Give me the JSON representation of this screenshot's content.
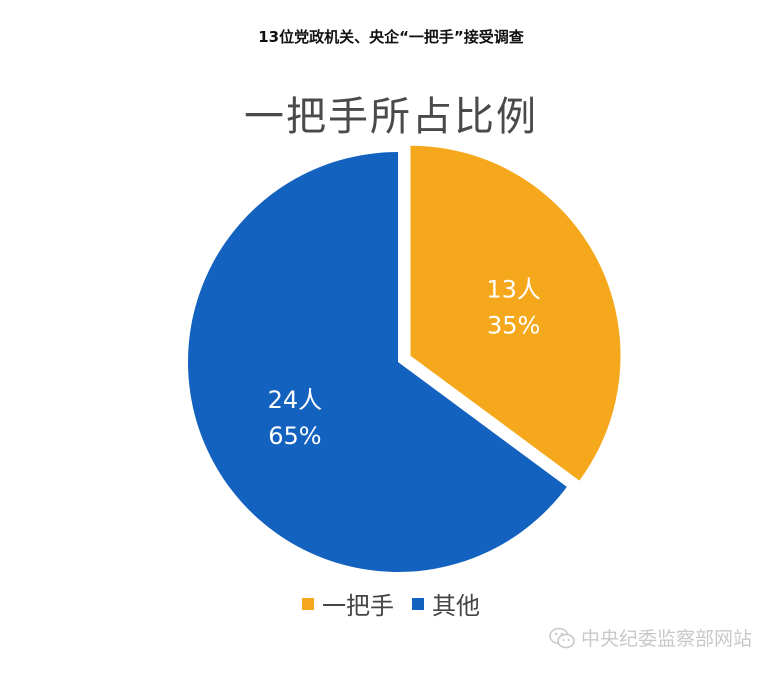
{
  "header": {
    "top_title": "13位党政机关、央企“一把手”接受调查"
  },
  "chart_data": {
    "type": "pie",
    "title": "一把手所占比例",
    "slices": [
      {
        "name": "一把手",
        "value": 13,
        "percent": 35,
        "color": "#f5a81c",
        "count_label": "13人",
        "percent_label": "35%",
        "exploded": true
      },
      {
        "name": "其他",
        "value": 24,
        "percent": 65,
        "color": "#1462bf",
        "count_label": "24人",
        "percent_label": "65%",
        "exploded": false
      }
    ],
    "legend_position": "bottom"
  },
  "watermark": {
    "text": "中央纪委监察部网站",
    "icon": "wechat-icon"
  }
}
